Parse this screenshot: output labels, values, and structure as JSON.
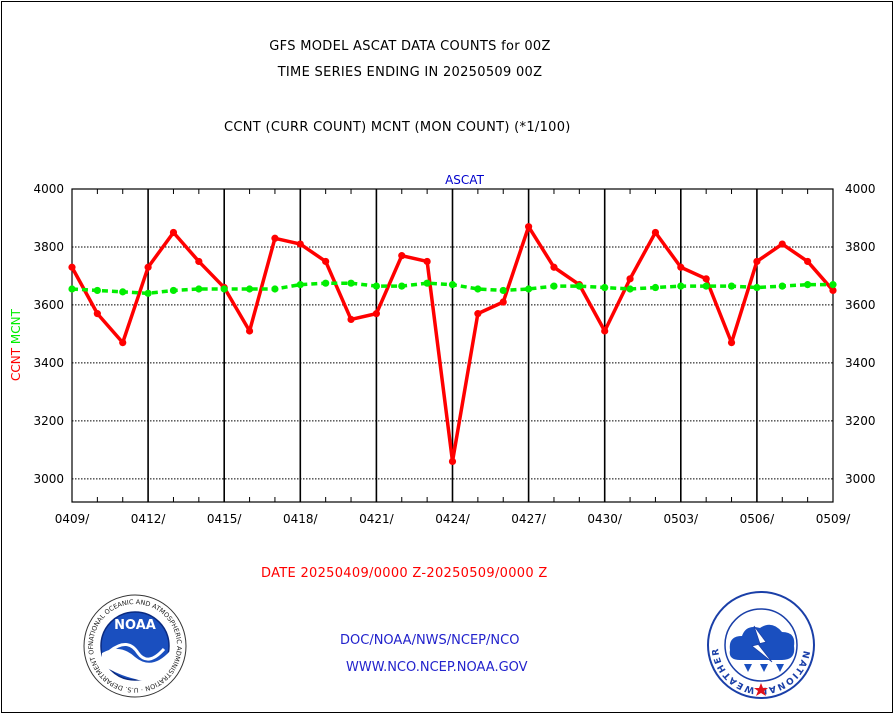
{
  "titles": {
    "line1": "GFS MODEL ASCAT DATA COUNTS for 00Z",
    "line2": "TIME SERIES ENDING IN 20250509 00Z",
    "line3": "CCNT (CURR COUNT) MCNT (MON COUNT) (*1/100)"
  },
  "footer": {
    "date_range": "DATE 20250409/0000 Z-20250509/0000 Z",
    "org": "DOC/NOAA/NWS/NCEP/NCO",
    "url": "WWW.NCO.NCEP.NOAA.GOV"
  },
  "logos": {
    "noaa": {
      "text": "NOAA",
      "ring_text": "NATIONAL OCEANIC AND ATMOSPHERIC ADMINISTRATION · U.S. DEPARTMENT OF COMMERCE"
    },
    "nws": {
      "ring_text": "NATIONAL WEATHER SERVICE"
    }
  },
  "colors": {
    "ccnt": "#ff0000",
    "mcnt": "#00ee00",
    "panel_title": "#0000cc",
    "footer_blue": "#2222cc",
    "footer_red": "#ff0000"
  },
  "chart_data": {
    "type": "line",
    "panel_title": "ASCAT",
    "ylabel_parts": [
      {
        "text": "CCNT",
        "color": "#ff0000"
      },
      {
        "text": "MCNT",
        "color": "#00ee00"
      }
    ],
    "ylim": [
      2920,
      4000
    ],
    "yticks": [
      3000,
      3200,
      3400,
      3600,
      3800,
      4000
    ],
    "xlim": [
      0,
      30
    ],
    "xticks": [
      {
        "x": 0,
        "label": "0409/"
      },
      {
        "x": 3,
        "label": "0412/"
      },
      {
        "x": 6,
        "label": "0415/"
      },
      {
        "x": 9,
        "label": "0418/"
      },
      {
        "x": 12,
        "label": "0421/"
      },
      {
        "x": 15,
        "label": "0424/"
      },
      {
        "x": 18,
        "label": "0427/"
      },
      {
        "x": 21,
        "label": "0430/"
      },
      {
        "x": 24,
        "label": "0503/"
      },
      {
        "x": 27,
        "label": "0506/"
      },
      {
        "x": 30,
        "label": "0509/"
      }
    ],
    "grid": true,
    "series": [
      {
        "name": "CCNT",
        "color": "#ff0000",
        "style": "solid",
        "x": [
          0,
          1,
          2,
          3,
          4,
          5,
          6,
          7,
          8,
          9,
          10,
          11,
          12,
          13,
          14,
          15,
          16,
          17,
          18,
          19,
          20,
          21,
          22,
          23,
          24,
          25,
          26,
          27,
          28,
          29,
          30
        ],
        "values": [
          3730,
          3570,
          3470,
          3730,
          3850,
          3750,
          3660,
          3510,
          3830,
          3810,
          3750,
          3550,
          3570,
          3770,
          3750,
          3060,
          3570,
          3610,
          3870,
          3730,
          3670,
          3510,
          3690,
          3850,
          3730,
          3690,
          3470,
          3750,
          3810,
          3750,
          3650
        ]
      },
      {
        "name": "MCNT",
        "color": "#00ee00",
        "style": "dashed",
        "x": [
          0,
          1,
          2,
          3,
          4,
          5,
          6,
          7,
          8,
          9,
          10,
          11,
          12,
          13,
          14,
          15,
          16,
          17,
          18,
          19,
          20,
          21,
          22,
          23,
          24,
          25,
          26,
          27,
          28,
          29,
          30
        ],
        "values": [
          3655,
          3650,
          3645,
          3640,
          3650,
          3655,
          3655,
          3655,
          3655,
          3670,
          3675,
          3675,
          3665,
          3665,
          3675,
          3670,
          3655,
          3650,
          3655,
          3665,
          3665,
          3660,
          3655,
          3660,
          3665,
          3665,
          3665,
          3660,
          3665,
          3670,
          3670
        ]
      }
    ]
  }
}
